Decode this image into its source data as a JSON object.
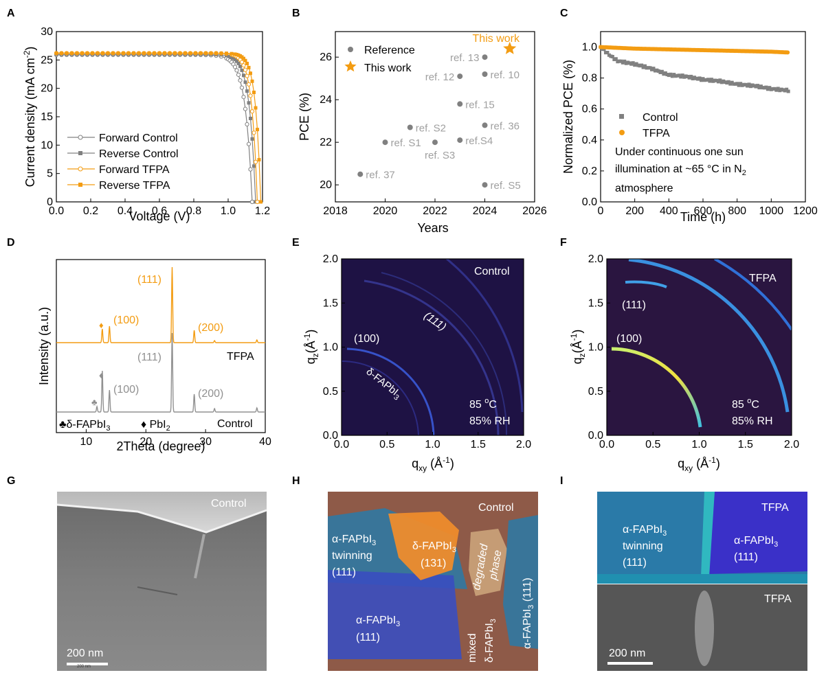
{
  "panel_labels": {
    "A": "A",
    "B": "B",
    "C": "C",
    "D": "D",
    "E": "E",
    "F": "F",
    "G": "G",
    "H": "H",
    "I": "I"
  },
  "colors": {
    "orange": "#F39C12",
    "grey": "#808080",
    "lightgrey": "#a0a0a0",
    "giwaxs_bg": "#1e1244"
  },
  "chart_data": [
    {
      "id": "A",
      "type": "line",
      "xlabel": "Voltage (V)",
      "ylabel_main": "Current density (mA cm",
      "ylabel_sup": "-2",
      "ylabel_end": ")",
      "xlim": [
        0,
        1.2
      ],
      "ylim": [
        0,
        30
      ],
      "xticks": [
        "0.0",
        "0.2",
        "0.4",
        "0.6",
        "0.8",
        "1.0",
        "1.2"
      ],
      "yticks": [
        "0",
        "5",
        "10",
        "15",
        "20",
        "25",
        "30"
      ],
      "legend": [
        {
          "name": "Forward Control",
          "color": "#808080",
          "marker": "open-circle"
        },
        {
          "name": "Reverse Control",
          "color": "#808080",
          "marker": "square"
        },
        {
          "name": "Forward TFPA",
          "color": "#F39C12",
          "marker": "open-circle"
        },
        {
          "name": "Reverse TFPA",
          "color": "#F39C12",
          "marker": "square"
        }
      ],
      "series": [
        {
          "jsc": 25.9,
          "voc": 1.14,
          "k": 0.04,
          "color": "#808080",
          "marker": "open-circle"
        },
        {
          "jsc": 26.0,
          "voc": 1.16,
          "k": 0.036,
          "color": "#808080",
          "marker": "square"
        },
        {
          "jsc": 26.2,
          "voc": 1.17,
          "k": 0.032,
          "color": "#F39C12",
          "marker": "open-circle"
        },
        {
          "jsc": 26.2,
          "voc": 1.19,
          "k": 0.03,
          "color": "#F39C12",
          "marker": "square"
        }
      ]
    },
    {
      "id": "B",
      "type": "scatter",
      "xlabel": "Years",
      "ylabel": "PCE (%)",
      "xlim": [
        2018,
        2026
      ],
      "ylim": [
        19.2,
        27.2
      ],
      "xticks": [
        "2018",
        "2020",
        "2022",
        "2024",
        "2026"
      ],
      "yticks": [
        "20",
        "22",
        "24",
        "26"
      ],
      "legend": [
        {
          "name": "Reference",
          "marker": "circle",
          "color": "#808080"
        },
        {
          "name": "This work",
          "marker": "star",
          "color": "#F39C12"
        }
      ],
      "points": [
        {
          "x": 2019,
          "y": 20.5,
          "label": "ref. 37",
          "pos": "right"
        },
        {
          "x": 2020,
          "y": 22.0,
          "label": "ref. S1",
          "pos": "right"
        },
        {
          "x": 2021,
          "y": 22.7,
          "label": "ref. S2",
          "pos": "right"
        },
        {
          "x": 2022,
          "y": 22.0,
          "label": "ref. S3",
          "pos": "below"
        },
        {
          "x": 2023,
          "y": 22.1,
          "label": "ref.S4",
          "pos": "right"
        },
        {
          "x": 2023,
          "y": 23.8,
          "label": "ref. 15",
          "pos": "right"
        },
        {
          "x": 2023,
          "y": 25.1,
          "label": "ref. 12",
          "pos": "left"
        },
        {
          "x": 2024,
          "y": 26.0,
          "label": "ref. 13",
          "pos": "left"
        },
        {
          "x": 2024,
          "y": 25.2,
          "label": "ref. 10",
          "pos": "right"
        },
        {
          "x": 2024,
          "y": 22.8,
          "label": "ref. 36",
          "pos": "right"
        },
        {
          "x": 2024,
          "y": 20.0,
          "label": "ref. S5",
          "pos": "right"
        }
      ],
      "star": {
        "x": 2025,
        "y": 26.4,
        "label": "This work"
      }
    },
    {
      "id": "C",
      "type": "scatter",
      "xlabel": "Time (h)",
      "ylabel": "Normalized PCE (%)",
      "xlim": [
        0,
        1200
      ],
      "ylim": [
        0,
        1.1
      ],
      "xticks": [
        "0",
        "200",
        "400",
        "600",
        "800",
        "1000",
        "1200"
      ],
      "yticks": [
        "0.0",
        "0.2",
        "0.4",
        "0.6",
        "0.8",
        "1.0"
      ],
      "legend": [
        {
          "name": "Control",
          "color": "#808080",
          "marker": "square"
        },
        {
          "name": "TFPA",
          "color": "#F39C12",
          "marker": "circle"
        }
      ],
      "note_line1": "Under continuous one sun",
      "note_line2": "illumination at ~65 °C in N",
      "note_sub": "2",
      "note_line3": "atmosphere",
      "control_curve": [
        [
          0,
          1.0
        ],
        [
          50,
          0.95
        ],
        [
          100,
          0.91
        ],
        [
          200,
          0.89
        ],
        [
          300,
          0.86
        ],
        [
          400,
          0.82
        ],
        [
          500,
          0.81
        ],
        [
          600,
          0.79
        ],
        [
          700,
          0.78
        ],
        [
          800,
          0.76
        ],
        [
          900,
          0.75
        ],
        [
          1000,
          0.73
        ],
        [
          1100,
          0.72
        ]
      ],
      "tfpa_curve": [
        [
          0,
          1.0
        ],
        [
          200,
          0.99
        ],
        [
          400,
          0.985
        ],
        [
          600,
          0.98
        ],
        [
          800,
          0.975
        ],
        [
          1000,
          0.97
        ],
        [
          1100,
          0.965
        ]
      ]
    },
    {
      "id": "D",
      "type": "line",
      "xlabel": "2Theta (degree)",
      "ylabel": "Intensity (a.u.)",
      "xlim": [
        5,
        40
      ],
      "xticks": [
        "10",
        "20",
        "30",
        "40"
      ],
      "series_labels": {
        "tfpa": "TFPA",
        "control": "Control"
      },
      "peak_labels": {
        "p111": "(111)",
        "p100": "(100)",
        "p200": "(200)"
      },
      "legend_club": "♣δ-FAPbI",
      "legend_club_sub": "3",
      "legend_dia": "♦ PbI",
      "legend_dia_sub": "2",
      "tfpa_peaks": [
        [
          12.7,
          20
        ],
        [
          13.9,
          24
        ],
        [
          24.4,
          110
        ],
        [
          28.1,
          18
        ],
        [
          31.5,
          3
        ],
        [
          38.6,
          4
        ]
      ],
      "control_peaks": [
        [
          11.8,
          8
        ],
        [
          12.7,
          60
        ],
        [
          13.9,
          32
        ],
        [
          24.4,
          115
        ],
        [
          28.1,
          26
        ],
        [
          31.5,
          5
        ],
        [
          38.6,
          6
        ]
      ]
    }
  ],
  "giwaxs_E": {
    "label": "Control",
    "cond1": "85 ",
    "cond1_sup": "o",
    "cond1_end": "C",
    "cond2": "85% RH",
    "ring100": "(100)",
    "ring111": "(111)",
    "delta": "δ-FAPbI",
    "delta_sub": "3",
    "xlabel": "q",
    "xlabel_sub": "xy",
    "xlabel_end": " (Å",
    "xlabel_sup": "-1",
    "xlabel_close": ")",
    "ylabel": "q",
    "ylabel_sub": "z",
    "ylabel_end": "(Å",
    "ylabel_sup": "-1",
    "ylabel_close": ")",
    "xticks": [
      "0.0",
      "0.5",
      "1.0",
      "1.5",
      "2.0"
    ],
    "yticks": [
      "0.0",
      "0.5",
      "1.0",
      "1.5",
      "2.0"
    ]
  },
  "giwaxs_F": {
    "label": "TFPA",
    "cond1": "85 ",
    "cond1_sup": "o",
    "cond1_end": "C",
    "cond2": "85% RH",
    "ring100": "(100)",
    "ring111": "(111)",
    "xticks": [
      "0.0",
      "0.5",
      "1.0",
      "1.5",
      "2.0"
    ],
    "yticks": [
      "0.0",
      "0.5",
      "1.0",
      "1.5",
      "2.0"
    ]
  },
  "tem_G": {
    "label": "Control",
    "scale": "200 nm",
    "scale_small": "200 nm"
  },
  "tem_H": {
    "label": "Control",
    "twin_a": "α-FAPbI",
    "twin_sub": "3",
    "twin_b": "twinning",
    "twin_c": "(111)",
    "delta_a": "δ-FAPbI",
    "delta_sub": "3",
    "delta_b": "(131)",
    "degraded_a": "degraded",
    "degraded_b": "phase",
    "alpha_a": "α-FAPbI",
    "alpha_sub": "3",
    "alpha_b": "(111)",
    "mixed_a": "mixed",
    "mixed_b": "δ-FAPbI",
    "mixed_sub": "3",
    "right_alpha": "α-FAPbI",
    "right_alpha_sub": "3",
    "right_alpha_end": " (111)"
  },
  "tem_I": {
    "label_top": "TFPA",
    "label_bottom": "TFPA",
    "twin_a": "α-FAPbI",
    "twin_sub": "3",
    "twin_b": "twinning",
    "twin_c": "(111)",
    "alpha_a": "α-FAPbI",
    "alpha_sub": "3",
    "alpha_b": "(111)",
    "scale": "200 nm"
  }
}
